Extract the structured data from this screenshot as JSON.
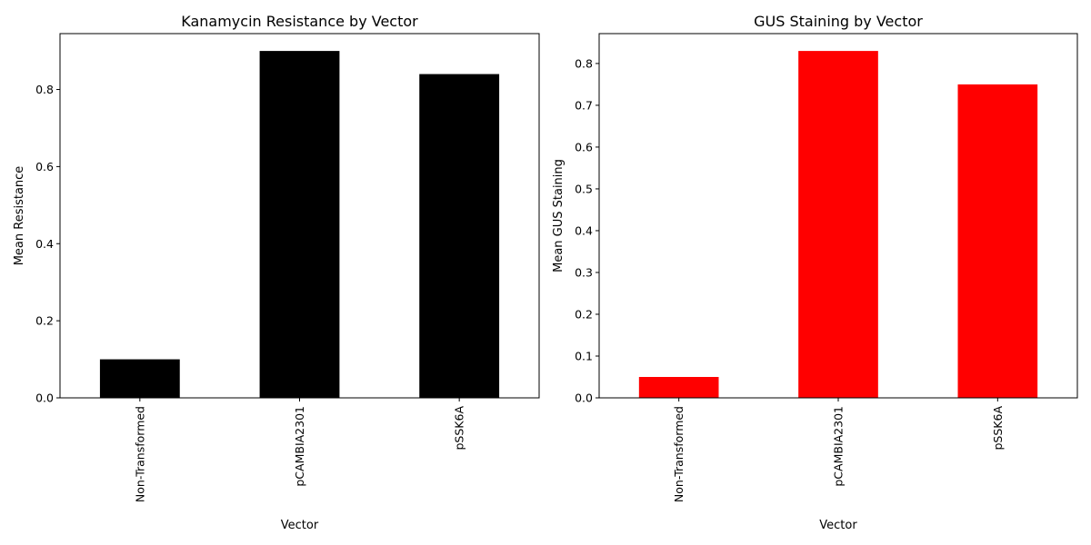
{
  "chart_data": [
    {
      "type": "bar",
      "title": "Kanamycin Resistance by Vector",
      "xlabel": "Vector",
      "ylabel": "Mean Resistance",
      "categories": [
        "Non-Transformed",
        "pCAMBIA2301",
        "pSSK6A"
      ],
      "values": [
        0.1,
        0.9,
        0.84
      ],
      "ylim": [
        0,
        0.945
      ],
      "yticks": [
        0.0,
        0.2,
        0.4,
        0.6,
        0.8
      ],
      "ytick_labels": [
        "0.0",
        "0.2",
        "0.4",
        "0.6",
        "0.8"
      ],
      "color": "#000000",
      "grid": false,
      "legend": "none"
    },
    {
      "type": "bar",
      "title": "GUS Staining by Vector",
      "xlabel": "Vector",
      "ylabel": "Mean GUS Staining",
      "categories": [
        "Non-Transformed",
        "pCAMBIA2301",
        "pSSK6A"
      ],
      "values": [
        0.05,
        0.83,
        0.75
      ],
      "ylim": [
        0,
        0.8715
      ],
      "yticks": [
        0.0,
        0.1,
        0.2,
        0.3,
        0.4,
        0.5,
        0.6,
        0.7,
        0.8
      ],
      "ytick_labels": [
        "0.0",
        "0.1",
        "0.2",
        "0.3",
        "0.4",
        "0.5",
        "0.6",
        "0.7",
        "0.8"
      ],
      "color": "#ff0000",
      "grid": false,
      "legend": "none"
    }
  ]
}
